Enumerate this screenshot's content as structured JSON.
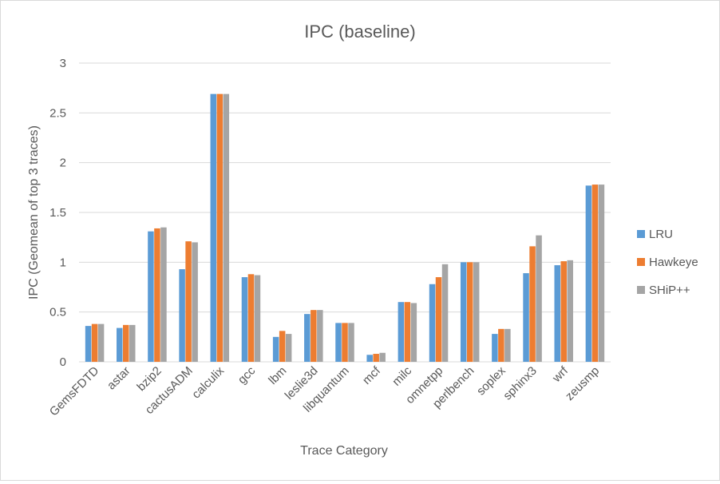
{
  "chart_data": {
    "type": "bar",
    "title": "IPC (baseline)",
    "xlabel": "Trace Category",
    "ylabel": "IPC (Geomean of top 3 traces)",
    "ylim": [
      0,
      3
    ],
    "yticks": [
      "0",
      "0.5",
      "1",
      "1.5",
      "2",
      "2.5",
      "3"
    ],
    "grid": true,
    "legend_position": "right",
    "categories": [
      "GemsFDTD",
      "astar",
      "bzip2",
      "cactusADM",
      "calculix",
      "gcc",
      "lbm",
      "leslie3d",
      "libquantum",
      "mcf",
      "milc",
      "omnetpp",
      "perlbench",
      "soplex",
      "sphinx3",
      "wrf",
      "zeusmp"
    ],
    "series": [
      {
        "name": "LRU",
        "color": "#5b9bd5",
        "values": [
          0.36,
          0.34,
          1.31,
          0.93,
          2.69,
          0.85,
          0.25,
          0.48,
          0.39,
          0.07,
          0.6,
          0.78,
          1.0,
          0.28,
          0.89,
          0.97,
          1.77
        ]
      },
      {
        "name": "Hawkeye",
        "color": "#ed7d31",
        "values": [
          0.38,
          0.37,
          1.34,
          1.21,
          2.69,
          0.88,
          0.31,
          0.52,
          0.39,
          0.08,
          0.6,
          0.85,
          1.0,
          0.33,
          1.16,
          1.01,
          1.78
        ]
      },
      {
        "name": "SHiP++",
        "color": "#a5a5a5",
        "values": [
          0.38,
          0.37,
          1.35,
          1.2,
          2.69,
          0.87,
          0.28,
          0.52,
          0.39,
          0.09,
          0.59,
          0.98,
          1.0,
          0.33,
          1.27,
          1.02,
          1.78
        ]
      }
    ]
  }
}
